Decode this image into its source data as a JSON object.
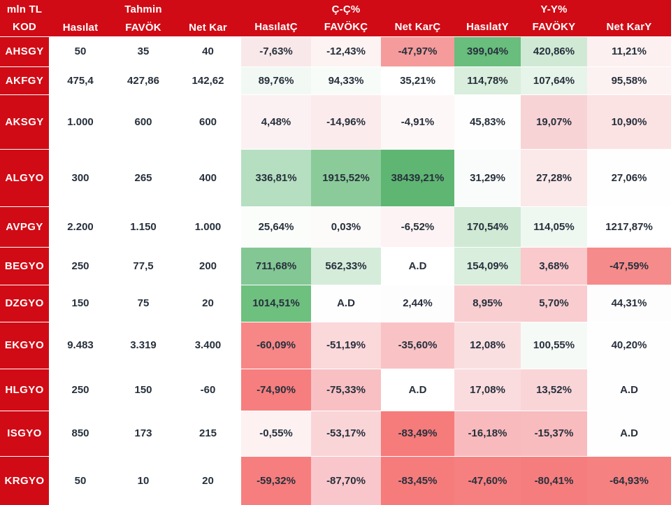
{
  "chart_data": {
    "type": "table",
    "unit_label": "mln TL",
    "group_labels": {
      "forecast": "Tahmin",
      "qoq": "Ç-Ç%",
      "yoy": "Y-Y%"
    },
    "columns": [
      "KOD",
      "Hasılat",
      "FAVÖK",
      "Net Kar",
      "HasılatÇ",
      "FAVÖKÇ",
      "Net KarÇ",
      "HasılatY",
      "FAVÖKY",
      "Net KarY"
    ],
    "rows": [
      {
        "kod": "AHSGY",
        "values": [
          "50",
          "35",
          "40"
        ],
        "pct": [
          {
            "v": "-7,63%",
            "bg": "#f9e8e9"
          },
          {
            "v": "-12,43%",
            "bg": "#fdf3f3"
          },
          {
            "v": "-47,97%",
            "bg": "#f59b9b"
          },
          {
            "v": "399,04%",
            "bg": "#69bd7d"
          },
          {
            "v": "420,86%",
            "bg": "#cfe9d5"
          },
          {
            "v": "11,21%",
            "bg": "#fdf0f0"
          }
        ]
      },
      {
        "kod": "AKFGY",
        "values": [
          "475,4",
          "427,86",
          "142,62"
        ],
        "pct": [
          {
            "v": "89,76%",
            "bg": "#f2f9f4"
          },
          {
            "v": "94,33%",
            "bg": "#f8fcf9"
          },
          {
            "v": "35,21%",
            "bg": "#ffffff"
          },
          {
            "v": "114,78%",
            "bg": "#d9eedd"
          },
          {
            "v": "107,64%",
            "bg": "#e6f4e9"
          },
          {
            "v": "95,58%",
            "bg": "#fdf2f2"
          }
        ]
      },
      {
        "kod": "AKSGY",
        "values": [
          "1.000",
          "600",
          "600"
        ],
        "pct": [
          {
            "v": "4,48%",
            "bg": "#fbf1f2"
          },
          {
            "v": "-14,96%",
            "bg": "#fcebec"
          },
          {
            "v": "-4,91%",
            "bg": "#fef7f7"
          },
          {
            "v": "45,83%",
            "bg": "#fdfefd"
          },
          {
            "v": "19,07%",
            "bg": "#f8d3d6"
          },
          {
            "v": "10,90%",
            "bg": "#fbe3e4"
          }
        ]
      },
      {
        "kod": "ALGYO",
        "values": [
          "300",
          "265",
          "400"
        ],
        "pct": [
          {
            "v": "336,81%",
            "bg": "#b5dfc0"
          },
          {
            "v": "1915,52%",
            "bg": "#8bcb99"
          },
          {
            "v": "38439,21%",
            "bg": "#5fb672"
          },
          {
            "v": "31,29%",
            "bg": "#fafcfb"
          },
          {
            "v": "27,28%",
            "bg": "#fbe8e9"
          },
          {
            "v": "27,06%",
            "bg": "#fefefe"
          }
        ]
      },
      {
        "kod": "AVPGY",
        "values": [
          "2.200",
          "1.150",
          "1.000"
        ],
        "pct": [
          {
            "v": "25,64%",
            "bg": "#fbfdfb"
          },
          {
            "v": "0,03%",
            "bg": "#fdfafa"
          },
          {
            "v": "-6,52%",
            "bg": "#fdf3f4"
          },
          {
            "v": "170,54%",
            "bg": "#cfe9d5"
          },
          {
            "v": "114,05%",
            "bg": "#eff7f1"
          },
          {
            "v": "1217,87%",
            "bg": "#ffffff"
          }
        ]
      },
      {
        "kod": "BEGYO",
        "values": [
          "250",
          "77,5",
          "200"
        ],
        "pct": [
          {
            "v": "711,68%",
            "bg": "#83c794"
          },
          {
            "v": "562,33%",
            "bg": "#d5ecda"
          },
          {
            "v": "A.D",
            "bg": "#ffffff"
          },
          {
            "v": "154,09%",
            "bg": "#d9eedd"
          },
          {
            "v": "3,68%",
            "bg": "#f9c9cc"
          },
          {
            "v": "-47,59%",
            "bg": "#f68b8b"
          }
        ]
      },
      {
        "kod": "DZGYO",
        "values": [
          "150",
          "75",
          "20"
        ],
        "pct": [
          {
            "v": "1014,51%",
            "bg": "#6ec07f"
          },
          {
            "v": "A.D",
            "bg": "#fefefe"
          },
          {
            "v": "2,44%",
            "bg": "#fefdfd"
          },
          {
            "v": "8,95%",
            "bg": "#f9ced1"
          },
          {
            "v": "5,70%",
            "bg": "#f9cccf"
          },
          {
            "v": "44,31%",
            "bg": "#fefdfd"
          }
        ]
      },
      {
        "kod": "EKGYO",
        "values": [
          "9.483",
          "3.319",
          "3.400"
        ],
        "pct": [
          {
            "v": "-60,09%",
            "bg": "#f78787"
          },
          {
            "v": "-51,19%",
            "bg": "#fbd8da"
          },
          {
            "v": "-35,60%",
            "bg": "#f9c3c6"
          },
          {
            "v": "12,08%",
            "bg": "#fadfe1"
          },
          {
            "v": "100,55%",
            "bg": "#f5faf6"
          },
          {
            "v": "40,20%",
            "bg": "#fefefe"
          }
        ]
      },
      {
        "kod": "HLGYO",
        "values": [
          "250",
          "150",
          "-60"
        ],
        "pct": [
          {
            "v": "-74,90%",
            "bg": "#f67e7e"
          },
          {
            "v": "-75,33%",
            "bg": "#f8c0c3"
          },
          {
            "v": "A.D",
            "bg": "#ffffff"
          },
          {
            "v": "17,08%",
            "bg": "#fadcde"
          },
          {
            "v": "13,52%",
            "bg": "#f9d5d8"
          },
          {
            "v": "A.D",
            "bg": "#fefefe"
          }
        ]
      },
      {
        "kod": "ISGYO",
        "values": [
          "850",
          "173",
          "215"
        ],
        "pct": [
          {
            "v": "-0,55%",
            "bg": "#fdf1f2"
          },
          {
            "v": "-53,17%",
            "bg": "#fad5d8"
          },
          {
            "v": "-83,49%",
            "bg": "#f67b7b"
          },
          {
            "v": "-16,18%",
            "bg": "#f8babd"
          },
          {
            "v": "-15,37%",
            "bg": "#f8bbbe"
          },
          {
            "v": "A.D",
            "bg": "#fefefe"
          }
        ]
      },
      {
        "kod": "KRGYO",
        "values": [
          "50",
          "10",
          "20"
        ],
        "pct": [
          {
            "v": "-59,32%",
            "bg": "#f77e7e"
          },
          {
            "v": "-87,70%",
            "bg": "#f9c6cb"
          },
          {
            "v": "-83,45%",
            "bg": "#f67c7c"
          },
          {
            "v": "-47,60%",
            "bg": "#f68080"
          },
          {
            "v": "-80,41%",
            "bg": "#f67d7d"
          },
          {
            "v": "-64,93%",
            "bg": "#f68181"
          }
        ]
      }
    ],
    "colors": {
      "header_red": "#d00b15",
      "text_dark": "#27303c",
      "text_light": "#ffffff",
      "strong_green": "#5fb672",
      "strong_red": "#f67b7b"
    }
  }
}
